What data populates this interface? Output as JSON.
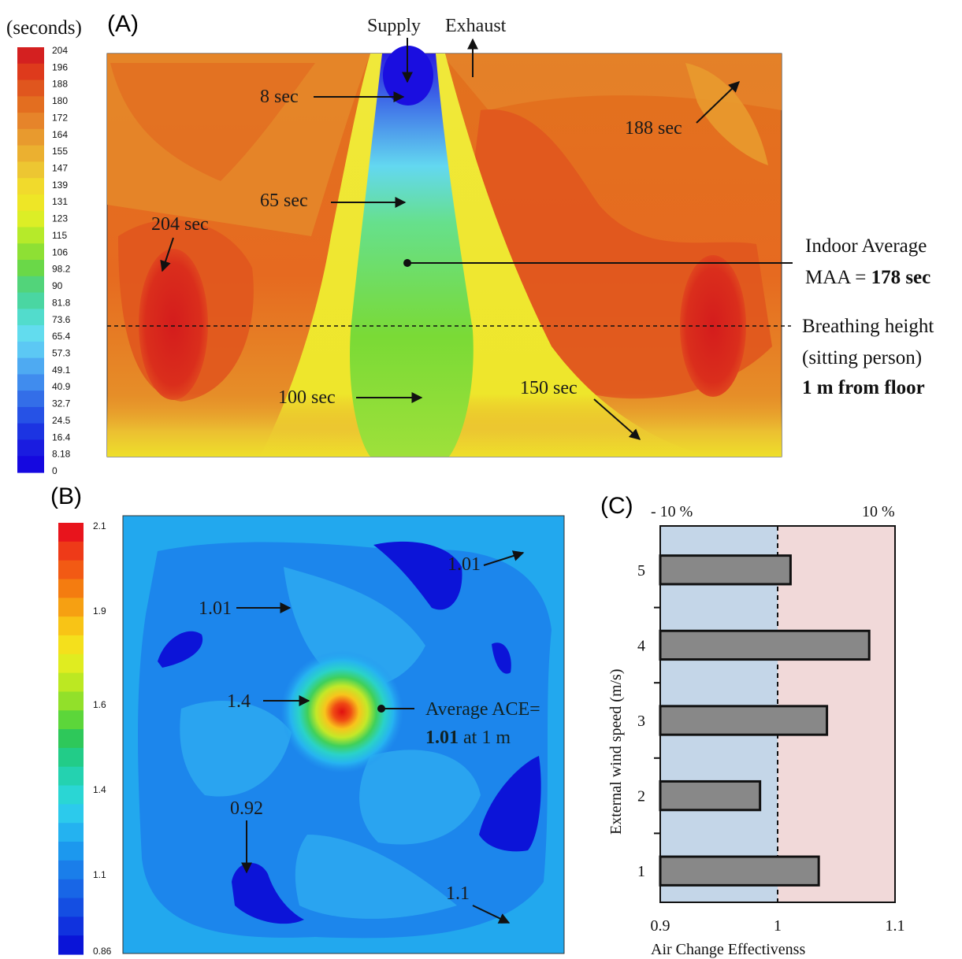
{
  "panel_a": {
    "letter": "(A)",
    "unit": "(seconds)",
    "scale_labels": [
      "204",
      "196",
      "188",
      "180",
      "172",
      "164",
      "155",
      "147",
      "139",
      "131",
      "123",
      "115",
      "106",
      "98.2",
      "90",
      "81.8",
      "73.6",
      "65.4",
      "57.3",
      "49.1",
      "40.9",
      "32.7",
      "24.5",
      "16.4",
      "8.18",
      "0"
    ],
    "scale_colors": [
      "#d42020",
      "#de3a1c",
      "#e0561e",
      "#e36e20",
      "#e6842a",
      "#e89a2e",
      "#ebb030",
      "#edc632",
      "#f1da2c",
      "#eee626",
      "#dcee26",
      "#b6ea2a",
      "#8ee034",
      "#6ad848",
      "#52d47a",
      "#4ad6a2",
      "#52dccc",
      "#62dcee",
      "#5cc8f4",
      "#4eaaf2",
      "#408cee",
      "#336ee8",
      "#2652e6",
      "#1c34e2",
      "#1a1ce0",
      "#1508e0"
    ],
    "supply_label": "Supply",
    "exhaust_label": "Exhaust",
    "annotations": {
      "s8": "8 sec",
      "s65": "65 sec",
      "s204": "204 sec",
      "s188": "188 sec",
      "s100": "100 sec",
      "s150": "150 sec"
    },
    "indoor_line1": "Indoor  Average",
    "indoor_line2_prefix": "MAA = ",
    "indoor_line2_value": "178 sec",
    "breathing_line1": "Breathing height",
    "breathing_line2": "(sitting person)",
    "breathing_line3": "1 m from floor"
  },
  "panel_b": {
    "letter": "(B)",
    "scale_labels": [
      "2.1",
      "1.9",
      "1.6",
      "1.4",
      "1.1",
      "0.86"
    ],
    "scale_colors": [
      "#e8141c",
      "#ee3a18",
      "#f25a14",
      "#f47c10",
      "#f6a012",
      "#f8c416",
      "#f4e01c",
      "#e0ec20",
      "#bce822",
      "#92e02a",
      "#5cd63a",
      "#2ec85a",
      "#22cc88",
      "#24d2b0",
      "#2ad6d4",
      "#2ccaec",
      "#24b2f0",
      "#1c98ee",
      "#1a7eea",
      "#1866e6",
      "#144ee2",
      "#1032de",
      "#0a14d8"
    ],
    "annotations": {
      "v101_top": "1.01",
      "v101_left": "1.01",
      "v14": "1.4",
      "avg_line1": "Average ACE=",
      "avg_value": "1.01",
      "avg_suffix": " at 1 m",
      "v092": "0.92",
      "v11": "1.1"
    }
  },
  "panel_c": {
    "letter": "(C)",
    "neg_label": "- 10 %",
    "pos_label": "10 %",
    "xlabel": "Air  Change Effectivenss",
    "ylabel": "External wind speed (m/s)"
  },
  "chart_data": {
    "type": "bar",
    "orientation": "horizontal",
    "categories": [
      "1",
      "2",
      "3",
      "4",
      "5"
    ],
    "values": [
      1.035,
      0.985,
      1.042,
      1.078,
      1.011
    ],
    "xlim": [
      0.9,
      1.1
    ],
    "xticks": [
      "0.9",
      "1",
      "1.1"
    ],
    "reference_line": 1.0,
    "xlabel": "Air  Change Effectivenss",
    "ylabel": "External wind speed (m/s)",
    "colors": {
      "bar": "#888888",
      "below": "#c4d6e8",
      "above": "#f1d9d9"
    }
  }
}
